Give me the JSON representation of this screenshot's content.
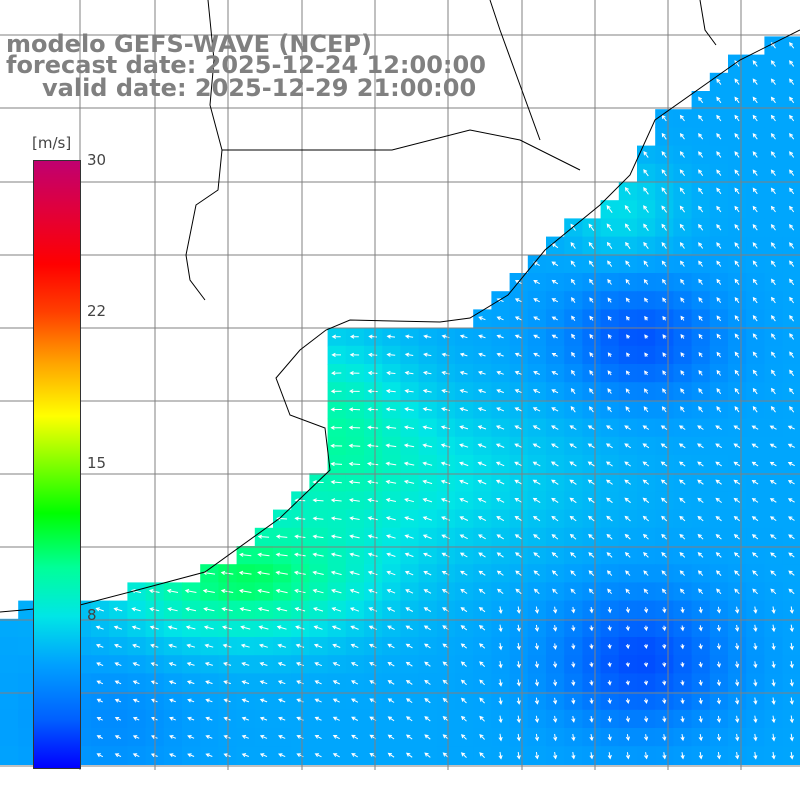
{
  "title": {
    "line1": "modelo GEFS-WAVE (NCEP)",
    "line2": "forecast date: 2025-12-24 12:00:00",
    "line3": "valid date: 2025-12-29 21:00:00"
  },
  "colorbar": {
    "unit": "[m/s]",
    "ticks": [
      {
        "label": "30",
        "value": 30
      },
      {
        "label": "22",
        "value": 22
      },
      {
        "label": "15",
        "value": 15
      },
      {
        "label": "8",
        "value": 8
      }
    ],
    "range": [
      0,
      30
    ],
    "colors": [
      "#0000ff",
      "#0060ff",
      "#00a0ff",
      "#00e6e6",
      "#00ff99",
      "#00ff00",
      "#80ff00",
      "#ffff00",
      "#ffa000",
      "#ff4000",
      "#ff0000",
      "#e0003c",
      "#c00070"
    ]
  },
  "map": {
    "grid_line_color": "#808080",
    "land_color": "#ffffff",
    "arrow_color": "#ffffff",
    "coastline_color": "#000000"
  }
}
